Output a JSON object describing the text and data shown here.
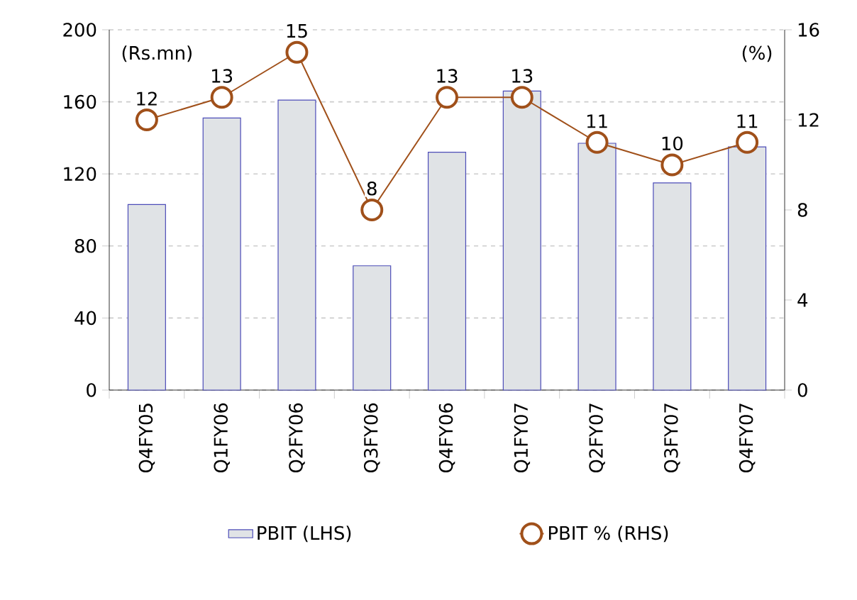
{
  "chart_data": {
    "type": "bar",
    "categories": [
      "Q4FY05",
      "Q1FY06",
      "Q2FY06",
      "Q3FY06",
      "Q4FY06",
      "Q1FY07",
      "Q2FY07",
      "Q3FY07",
      "Q4FY07"
    ],
    "series": [
      {
        "name": "PBIT (LHS)",
        "color": "#e0e3e6",
        "values": [
          103,
          151,
          161,
          69,
          132,
          166,
          137,
          115,
          135
        ]
      },
      {
        "name": "PBIT % (RHS)",
        "type": "line",
        "axis": "y2",
        "color": "#a0501a",
        "marker": "circle",
        "values": [
          12,
          13,
          15,
          8,
          13,
          13,
          11,
          10,
          11
        ],
        "value_labels": [
          "12",
          "13",
          "15",
          "8",
          "13",
          "13",
          "11",
          "10",
          "11"
        ]
      }
    ],
    "ylabel": "(Rs.mn)",
    "y2label": "(%)",
    "ylim": [
      0,
      200
    ],
    "yticks": [
      0,
      40,
      80,
      120,
      160,
      200
    ],
    "y2lim": [
      0,
      16
    ],
    "y2ticks": [
      0,
      4,
      8,
      12,
      16
    ],
    "grid": "y",
    "legend": "bottom"
  }
}
